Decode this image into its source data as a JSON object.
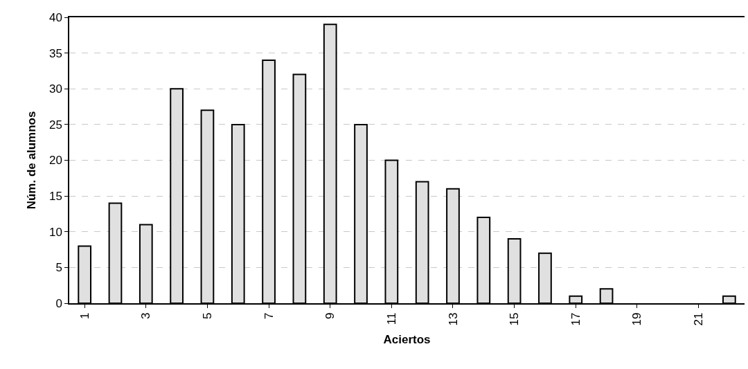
{
  "chart_data": {
    "type": "bar",
    "xlabel": "Aciertos",
    "ylabel": "Núm. de alumnos",
    "categories": [
      "1",
      null,
      "3",
      null,
      "5",
      null,
      "7",
      null,
      "9",
      null,
      "11",
      null,
      "13",
      null,
      "15",
      null,
      "17",
      null,
      "19",
      null,
      "21",
      null
    ],
    "values": [
      8,
      14,
      11,
      30,
      27,
      25,
      34,
      32,
      39,
      25,
      20,
      17,
      16,
      12,
      9,
      7,
      1,
      2,
      0,
      0,
      0,
      1
    ],
    "color": "#e0e0e0",
    "ylim": [
      0,
      40
    ],
    "yticks": [
      0,
      5,
      10,
      15,
      20,
      25,
      30,
      35,
      40
    ],
    "grid": "y"
  }
}
